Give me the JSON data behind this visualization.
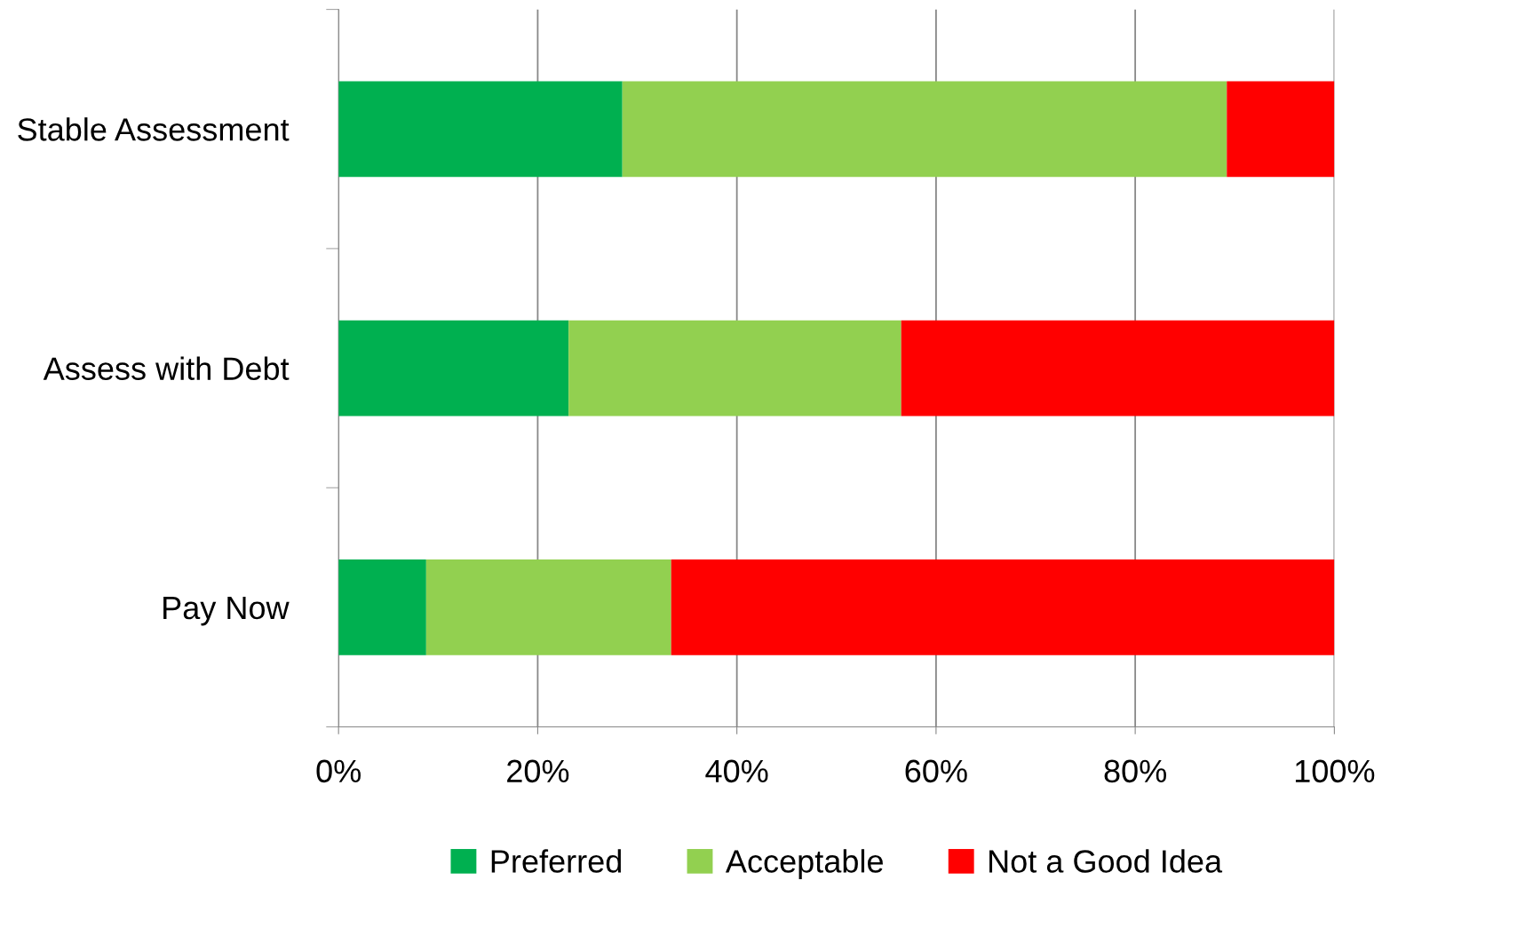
{
  "chart_data": {
    "type": "bar",
    "orientation": "horizontal",
    "stacked": true,
    "categories": [
      "Stable Assessment",
      "Assess with Debt",
      "Pay Now"
    ],
    "series": [
      {
        "name": "Preferred",
        "color": "#00b050",
        "values": [
          28.5,
          23.1,
          8.8
        ]
      },
      {
        "name": "Acceptable",
        "color": "#92d050",
        "values": [
          60.7,
          33.4,
          24.6
        ]
      },
      {
        "name": "Not a Good Idea",
        "color": "#ff0000",
        "values": [
          10.8,
          43.5,
          66.6
        ]
      }
    ],
    "xlim": [
      0,
      100
    ],
    "xticks": [
      {
        "value": 0,
        "label": "0%"
      },
      {
        "value": 20,
        "label": "20%"
      },
      {
        "value": 40,
        "label": "40%"
      },
      {
        "value": 60,
        "label": "60%"
      },
      {
        "value": 80,
        "label": "80%"
      },
      {
        "value": 100,
        "label": "100%"
      }
    ],
    "grid": "x",
    "legend": "bottom"
  }
}
